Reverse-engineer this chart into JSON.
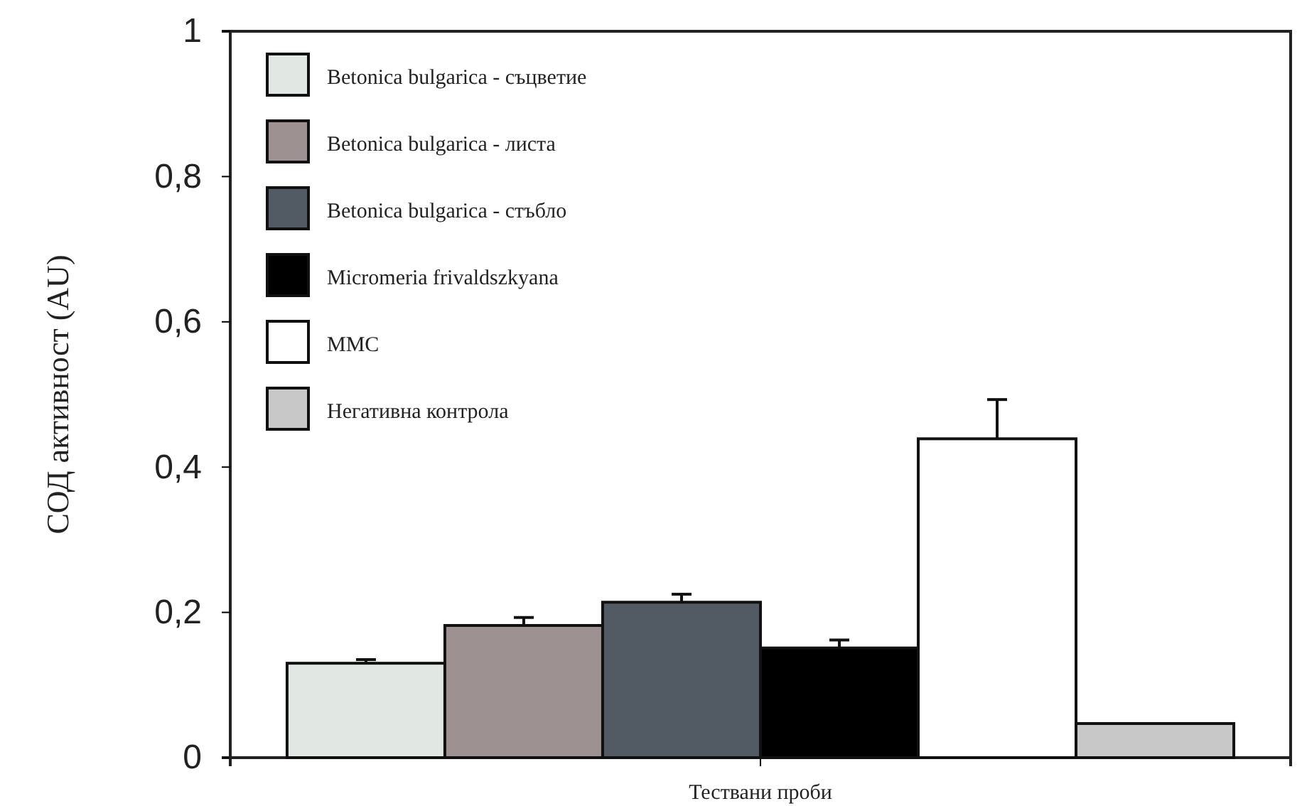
{
  "chart_data": {
    "type": "bar",
    "xlabel": "Тествани проби",
    "ylabel": "СОД активност (AU)",
    "categories": [
      null
    ],
    "series": [
      {
        "name": "Betonica bulgarica - съцветие",
        "color": "#e1e8e3",
        "values": [
          0.13
        ],
        "errors": [
          [
            0.13,
            0.135
          ]
        ]
      },
      {
        "name": "Betonica bulgarica - листа",
        "color": "#9e9191",
        "values": [
          0.182
        ],
        "errors": [
          [
            0.182,
            0.193
          ]
        ]
      },
      {
        "name": "Betonica bulgarica - стъбло",
        "color": "#525a64",
        "values": [
          0.214
        ],
        "errors": [
          [
            0.214,
            0.225
          ]
        ]
      },
      {
        "name": "Micromeria frivaldszkyana",
        "color": "#000000",
        "values": [
          0.151
        ],
        "errors": [
          [
            0.151,
            0.162
          ]
        ]
      },
      {
        "name": "ММС",
        "color": "#ffffff",
        "values": [
          0.439
        ],
        "errors": [
          [
            0.439,
            0.493
          ]
        ]
      },
      {
        "name": "Негативна контрола",
        "color": "#c8c8c8",
        "values": [
          0.047
        ]
      }
    ],
    "ylim": [
      0,
      1
    ],
    "yticks": [
      {
        "value": 0,
        "label": "0"
      },
      {
        "value": 0.2,
        "label": "0,2"
      },
      {
        "value": 0.4,
        "label": "0,4"
      },
      {
        "value": 0.6,
        "label": "0,6"
      },
      {
        "value": 0.8,
        "label": "0,8"
      },
      {
        "value": 1,
        "label": "1"
      }
    ],
    "legend": "top left"
  }
}
